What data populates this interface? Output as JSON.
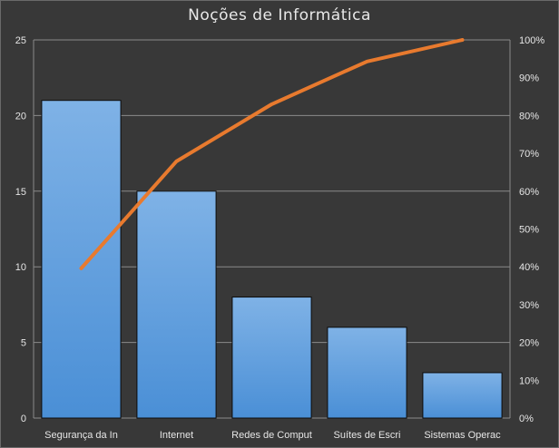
{
  "chart_data": {
    "type": "bar",
    "title": "Noções de Informática",
    "categories": [
      "Segurança da In",
      "Internet",
      "Redes de Comput",
      "Suítes de Escri",
      "Sistemas Operac"
    ],
    "series": [
      {
        "type": "bar",
        "axis": "left",
        "values": [
          21,
          15,
          8,
          6,
          3
        ]
      },
      {
        "type": "line",
        "axis": "right",
        "values": [
          39.6,
          67.9,
          83.0,
          94.3,
          100.0
        ]
      }
    ],
    "y_left": {
      "min": 0,
      "max": 25,
      "ticks": [
        "0",
        "5",
        "10",
        "15",
        "20",
        "25"
      ]
    },
    "y_right": {
      "min": 0,
      "max": 100,
      "ticks": [
        "0%",
        "10%",
        "20%",
        "30%",
        "40%",
        "50%",
        "60%",
        "70%",
        "80%",
        "90%",
        "100%"
      ]
    },
    "grid": true,
    "legend": "none",
    "colors": {
      "bar": "#4a8fd6",
      "bar_top": "#7fb2e6",
      "line": "#e87a2e",
      "grid": "#8a8a8a",
      "background": "#383838"
    }
  }
}
